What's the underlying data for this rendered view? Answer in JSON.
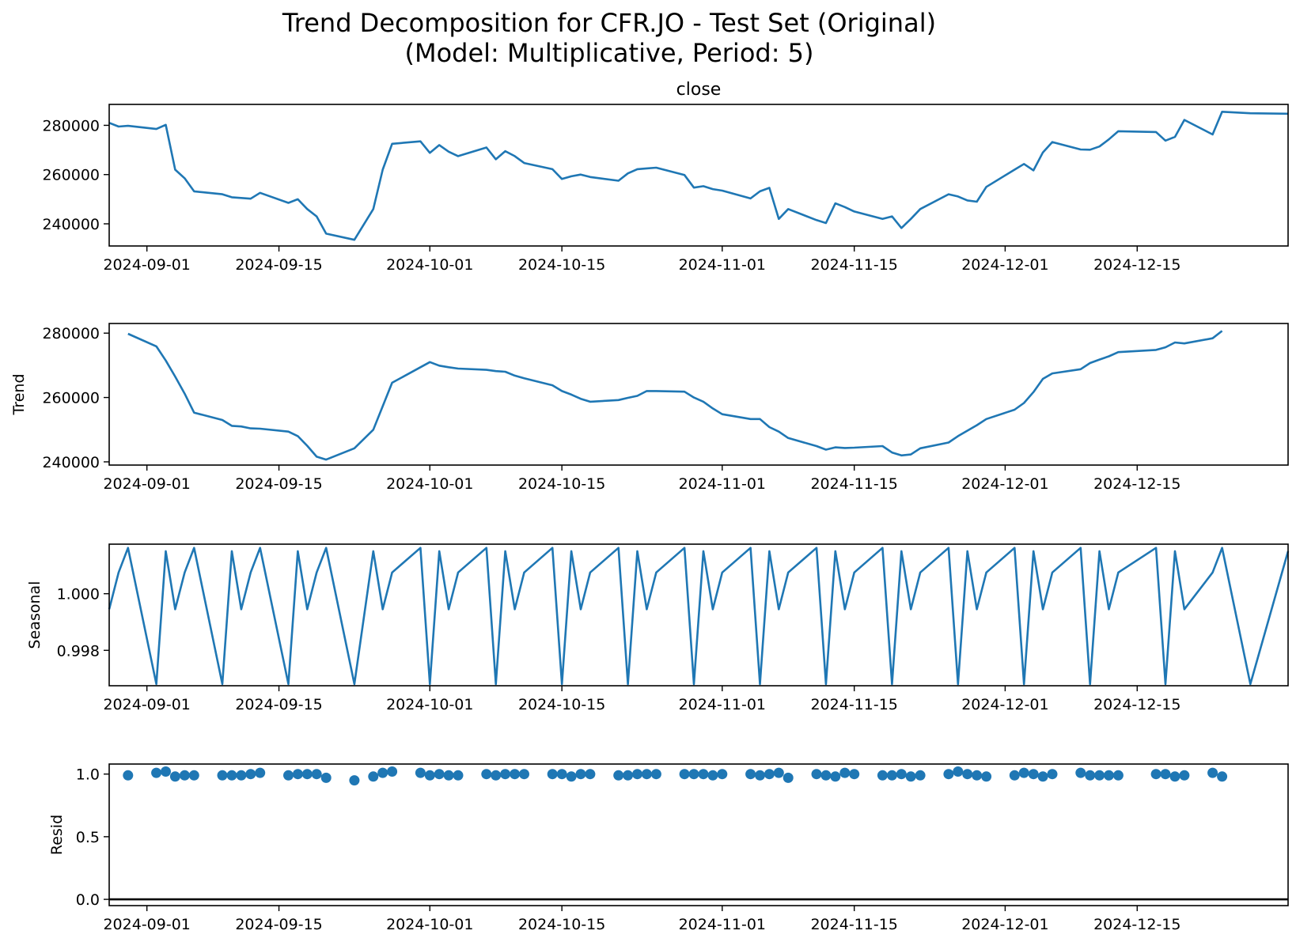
{
  "figure": {
    "title_line1": "Trend Decomposition for CFR.JO - Test Set (Original)",
    "title_line2": "(Model: Multiplicative, Period: 5)"
  },
  "colors": {
    "line": "#1f77b4",
    "axis": "#000000"
  },
  "x_ticks": [
    "2024-09-01",
    "2024-09-15",
    "2024-10-01",
    "2024-10-15",
    "2024-11-01",
    "2024-11-15",
    "2024-12-01",
    "2024-12-15"
  ],
  "chart_data": [
    {
      "type": "line",
      "title": "close",
      "ylabel": "",
      "xlim": [
        "2024-08-28",
        "2024-12-31"
      ],
      "ylim": [
        231000,
        288500
      ],
      "y_ticks": [
        240000,
        260000,
        280000
      ],
      "y_tick_labels": [
        "240000",
        "260000",
        "280000"
      ],
      "x": [
        "2024-08-28",
        "2024-08-29",
        "2024-08-30",
        "2024-09-02",
        "2024-09-03",
        "2024-09-04",
        "2024-09-05",
        "2024-09-06",
        "2024-09-09",
        "2024-09-10",
        "2024-09-11",
        "2024-09-12",
        "2024-09-13",
        "2024-09-16",
        "2024-09-17",
        "2024-09-18",
        "2024-09-19",
        "2024-09-20",
        "2024-09-23",
        "2024-09-25",
        "2024-09-26",
        "2024-09-27",
        "2024-09-30",
        "2024-10-01",
        "2024-10-02",
        "2024-10-03",
        "2024-10-04",
        "2024-10-07",
        "2024-10-08",
        "2024-10-09",
        "2024-10-10",
        "2024-10-11",
        "2024-10-14",
        "2024-10-15",
        "2024-10-16",
        "2024-10-17",
        "2024-10-18",
        "2024-10-21",
        "2024-10-22",
        "2024-10-23",
        "2024-10-24",
        "2024-10-25",
        "2024-10-28",
        "2024-10-29",
        "2024-10-30",
        "2024-10-31",
        "2024-11-01",
        "2024-11-04",
        "2024-11-05",
        "2024-11-06",
        "2024-11-07",
        "2024-11-08",
        "2024-11-11",
        "2024-11-12",
        "2024-11-13",
        "2024-11-14",
        "2024-11-15",
        "2024-11-18",
        "2024-11-19",
        "2024-11-20",
        "2024-11-21",
        "2024-11-22",
        "2024-11-25",
        "2024-11-26",
        "2024-11-27",
        "2024-11-28",
        "2024-11-29",
        "2024-12-02",
        "2024-12-03",
        "2024-12-04",
        "2024-12-05",
        "2024-12-06",
        "2024-12-09",
        "2024-12-10",
        "2024-12-11",
        "2024-12-12",
        "2024-12-13",
        "2024-12-17",
        "2024-12-18",
        "2024-12-19",
        "2024-12-20",
        "2024-12-23",
        "2024-12-24",
        "2024-12-27",
        "2024-12-31"
      ],
      "values": [
        281000,
        279500,
        279800,
        278500,
        280200,
        262000,
        258500,
        253200,
        252000,
        250800,
        250500,
        250200,
        252600,
        248500,
        250000,
        246000,
        243000,
        236000,
        233500,
        246000,
        262000,
        272500,
        273500,
        268800,
        272000,
        269300,
        267500,
        271000,
        266200,
        269500,
        267500,
        264700,
        262200,
        258200,
        259300,
        260000,
        259000,
        257500,
        260500,
        262200,
        262500,
        262800,
        259800,
        254700,
        255300,
        254100,
        253500,
        250300,
        253200,
        254600,
        242000,
        246000,
        241500,
        240300,
        248300,
        246800,
        245000,
        242000,
        243000,
        238300,
        242000,
        246000,
        252000,
        251100,
        249500,
        249000,
        255000,
        262000,
        264300,
        261700,
        269000,
        273200,
        270200,
        270100,
        271400,
        274300,
        277600,
        277300,
        273800,
        275300,
        282200,
        276300,
        285500,
        284900,
        284700
      ]
    },
    {
      "type": "line",
      "title": "",
      "ylabel": "Trend",
      "xlim": [
        "2024-08-28",
        "2024-12-31"
      ],
      "ylim": [
        239000,
        283000
      ],
      "y_ticks": [
        240000,
        260000,
        280000
      ],
      "y_tick_labels": [
        "240000",
        "260000",
        "280000"
      ],
      "x": [
        "2024-08-30",
        "2024-09-02",
        "2024-09-03",
        "2024-09-04",
        "2024-09-05",
        "2024-09-06",
        "2024-09-09",
        "2024-09-10",
        "2024-09-11",
        "2024-09-12",
        "2024-09-13",
        "2024-09-16",
        "2024-09-17",
        "2024-09-18",
        "2024-09-19",
        "2024-09-20",
        "2024-09-23",
        "2024-09-25",
        "2024-09-26",
        "2024-09-27",
        "2024-09-30",
        "2024-10-01",
        "2024-10-02",
        "2024-10-03",
        "2024-10-04",
        "2024-10-07",
        "2024-10-08",
        "2024-10-09",
        "2024-10-10",
        "2024-10-11",
        "2024-10-14",
        "2024-10-15",
        "2024-10-16",
        "2024-10-17",
        "2024-10-18",
        "2024-10-21",
        "2024-10-22",
        "2024-10-23",
        "2024-10-24",
        "2024-10-25",
        "2024-10-28",
        "2024-10-29",
        "2024-10-30",
        "2024-10-31",
        "2024-11-01",
        "2024-11-04",
        "2024-11-05",
        "2024-11-06",
        "2024-11-07",
        "2024-11-08",
        "2024-11-11",
        "2024-11-12",
        "2024-11-13",
        "2024-11-14",
        "2024-11-15",
        "2024-11-18",
        "2024-11-19",
        "2024-11-20",
        "2024-11-21",
        "2024-11-22",
        "2024-11-25",
        "2024-11-26",
        "2024-11-27",
        "2024-11-28",
        "2024-11-29",
        "2024-12-02",
        "2024-12-03",
        "2024-12-04",
        "2024-12-05",
        "2024-12-06",
        "2024-12-09",
        "2024-12-10",
        "2024-12-11",
        "2024-12-12",
        "2024-12-13",
        "2024-12-17",
        "2024-12-18",
        "2024-12-19",
        "2024-12-20",
        "2024-12-23",
        "2024-12-24"
      ],
      "values": [
        279800,
        275900,
        271500,
        266500,
        261200,
        255300,
        253000,
        251200,
        251000,
        250400,
        250300,
        249400,
        248000,
        245000,
        241600,
        240700,
        244200,
        250000,
        257300,
        264600,
        269400,
        271000,
        269900,
        269400,
        269000,
        268600,
        268200,
        268000,
        266800,
        266000,
        263800,
        262000,
        260900,
        259600,
        258700,
        259200,
        259900,
        260500,
        262000,
        262000,
        261800,
        260000,
        258700,
        256600,
        254800,
        253300,
        253300,
        250800,
        249400,
        247400,
        244900,
        243800,
        244500,
        244300,
        244400,
        244900,
        242900,
        242000,
        242300,
        244200,
        246000,
        248000,
        249700,
        251400,
        253300,
        256200,
        258300,
        261700,
        265800,
        267500,
        268800,
        270700,
        271800,
        272800,
        274100,
        274800,
        275600,
        277100,
        276800,
        278400,
        280700
      ]
    },
    {
      "type": "line",
      "title": "",
      "ylabel": "Seasonal",
      "xlim": [
        "2024-08-28",
        "2024-12-31"
      ],
      "ylim": [
        0.99675,
        1.00175
      ],
      "y_ticks": [
        0.998,
        1.0
      ],
      "y_tick_labels": [
        "0.998",
        "1.000"
      ],
      "x": [
        "2024-08-28",
        "2024-08-29",
        "2024-08-30",
        "2024-09-02",
        "2024-09-03",
        "2024-09-04",
        "2024-09-05",
        "2024-09-06",
        "2024-09-09",
        "2024-09-10",
        "2024-09-11",
        "2024-09-12",
        "2024-09-13",
        "2024-09-16",
        "2024-09-17",
        "2024-09-18",
        "2024-09-19",
        "2024-09-20",
        "2024-09-23",
        "2024-09-25",
        "2024-09-26",
        "2024-09-27",
        "2024-09-30",
        "2024-10-01",
        "2024-10-02",
        "2024-10-03",
        "2024-10-04",
        "2024-10-07",
        "2024-10-08",
        "2024-10-09",
        "2024-10-10",
        "2024-10-11",
        "2024-10-14",
        "2024-10-15",
        "2024-10-16",
        "2024-10-17",
        "2024-10-18",
        "2024-10-21",
        "2024-10-22",
        "2024-10-23",
        "2024-10-24",
        "2024-10-25",
        "2024-10-28",
        "2024-10-29",
        "2024-10-30",
        "2024-10-31",
        "2024-11-01",
        "2024-11-04",
        "2024-11-05",
        "2024-11-06",
        "2024-11-07",
        "2024-11-08",
        "2024-11-11",
        "2024-11-12",
        "2024-11-13",
        "2024-11-14",
        "2024-11-15",
        "2024-11-18",
        "2024-11-19",
        "2024-11-20",
        "2024-11-21",
        "2024-11-22",
        "2024-11-25",
        "2024-11-26",
        "2024-11-27",
        "2024-11-28",
        "2024-11-29",
        "2024-12-02",
        "2024-12-03",
        "2024-12-04",
        "2024-12-05",
        "2024-12-06",
        "2024-12-09",
        "2024-12-10",
        "2024-12-11",
        "2024-12-12",
        "2024-12-13",
        "2024-12-17",
        "2024-12-18",
        "2024-12-19",
        "2024-12-20",
        "2024-12-23",
        "2024-12-24",
        "2024-12-27",
        "2024-12-31"
      ],
      "values": [
        0.99945,
        1.00075,
        1.00162,
        0.99681,
        1.0015,
        0.99945,
        1.00075,
        1.00162,
        0.99681,
        1.0015,
        0.99945,
        1.00075,
        1.00162,
        0.99681,
        1.0015,
        0.99945,
        1.00075,
        1.00162,
        0.99681,
        1.0015,
        0.99945,
        1.00075,
        1.00162,
        0.99681,
        1.0015,
        0.99945,
        1.00075,
        1.00162,
        0.99681,
        1.0015,
        0.99945,
        1.00075,
        1.00162,
        0.99681,
        1.0015,
        0.99945,
        1.00075,
        1.00162,
        0.99681,
        1.0015,
        0.99945,
        1.00075,
        1.00162,
        0.99681,
        1.0015,
        0.99945,
        1.00075,
        1.00162,
        0.99681,
        1.0015,
        0.99945,
        1.00075,
        1.00162,
        0.99681,
        1.0015,
        0.99945,
        1.00075,
        1.00162,
        0.99681,
        1.0015,
        0.99945,
        1.00075,
        1.00162,
        0.99681,
        1.0015,
        0.99945,
        1.00075,
        1.00162,
        0.99681,
        1.0015,
        0.99945,
        1.00075,
        1.00162,
        0.99681,
        1.0015,
        0.99945,
        1.00075,
        1.00162,
        0.99681,
        1.0015,
        0.99945,
        1.00075,
        1.00162,
        0.99681,
        1.0015
      ]
    },
    {
      "type": "scatter",
      "title": "",
      "ylabel": "Resid",
      "xlim": [
        "2024-08-28",
        "2024-12-31"
      ],
      "ylim": [
        -0.05,
        1.08
      ],
      "y_ticks": [
        0.0,
        0.5,
        1.0
      ],
      "y_tick_labels": [
        "0.0",
        "0.5",
        "1.0"
      ],
      "baseline": 0,
      "x": [
        "2024-08-30",
        "2024-09-02",
        "2024-09-03",
        "2024-09-04",
        "2024-09-05",
        "2024-09-06",
        "2024-09-09",
        "2024-09-10",
        "2024-09-11",
        "2024-09-12",
        "2024-09-13",
        "2024-09-16",
        "2024-09-17",
        "2024-09-18",
        "2024-09-19",
        "2024-09-20",
        "2024-09-23",
        "2024-09-25",
        "2024-09-26",
        "2024-09-27",
        "2024-09-30",
        "2024-10-01",
        "2024-10-02",
        "2024-10-03",
        "2024-10-04",
        "2024-10-07",
        "2024-10-08",
        "2024-10-09",
        "2024-10-10",
        "2024-10-11",
        "2024-10-14",
        "2024-10-15",
        "2024-10-16",
        "2024-10-17",
        "2024-10-18",
        "2024-10-21",
        "2024-10-22",
        "2024-10-23",
        "2024-10-24",
        "2024-10-25",
        "2024-10-28",
        "2024-10-29",
        "2024-10-30",
        "2024-10-31",
        "2024-11-01",
        "2024-11-04",
        "2024-11-05",
        "2024-11-06",
        "2024-11-07",
        "2024-11-08",
        "2024-11-11",
        "2024-11-12",
        "2024-11-13",
        "2024-11-14",
        "2024-11-15",
        "2024-11-18",
        "2024-11-19",
        "2024-11-20",
        "2024-11-21",
        "2024-11-22",
        "2024-11-25",
        "2024-11-26",
        "2024-11-27",
        "2024-11-28",
        "2024-11-29",
        "2024-12-02",
        "2024-12-03",
        "2024-12-04",
        "2024-12-05",
        "2024-12-06",
        "2024-12-09",
        "2024-12-10",
        "2024-12-11",
        "2024-12-12",
        "2024-12-13",
        "2024-12-17",
        "2024-12-18",
        "2024-12-19",
        "2024-12-20",
        "2024-12-23",
        "2024-12-24"
      ],
      "values": [
        0.99,
        1.01,
        1.02,
        0.98,
        0.99,
        0.99,
        0.99,
        0.99,
        0.99,
        1.0,
        1.01,
        0.99,
        1.0,
        1.0,
        1.0,
        0.97,
        0.95,
        0.98,
        1.01,
        1.02,
        1.01,
        0.99,
        1.0,
        0.99,
        0.99,
        1.0,
        0.99,
        1.0,
        1.0,
        1.0,
        1.0,
        1.0,
        0.98,
        1.0,
        1.0,
        0.99,
        0.99,
        1.0,
        1.0,
        1.0,
        1.0,
        1.0,
        1.0,
        0.99,
        1.0,
        1.0,
        0.99,
        1.0,
        1.01,
        0.97,
        1.0,
        0.99,
        0.98,
        1.01,
        1.0,
        0.99,
        0.99,
        1.0,
        0.98,
        0.99,
        1.0,
        1.02,
        1.0,
        0.99,
        0.98,
        0.99,
        1.01,
        1.0,
        0.98,
        1.0,
        1.01,
        0.99,
        0.99,
        0.99,
        0.99,
        1.0,
        1.0,
        0.98,
        0.99,
        1.01,
        0.98
      ]
    }
  ]
}
